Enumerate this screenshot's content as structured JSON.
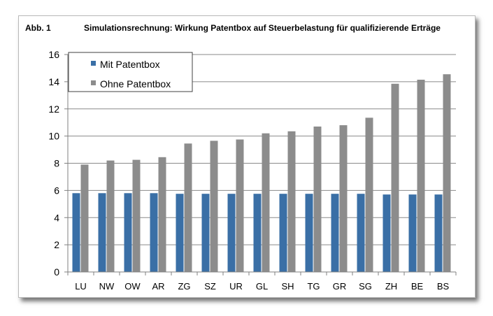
{
  "figure": {
    "label": "Abb. 1",
    "title": "Simulationsrechnung: Wirkung Patentbox auf Steuerbelastung für qualifizierende Erträge"
  },
  "chart_data": {
    "type": "bar",
    "title": "Simulationsrechnung: Wirkung Patentbox auf Steuerbelastung für qualifizierende Erträge",
    "xlabel": "",
    "ylabel": "",
    "ylim": [
      0,
      16
    ],
    "yticks": [
      "0",
      "2",
      "4",
      "6",
      "8",
      "10",
      "12",
      "14",
      "16"
    ],
    "grid": true,
    "legend_position": "top-left",
    "categories": [
      "LU",
      "NW",
      "OW",
      "AR",
      "ZG",
      "SZ",
      "UR",
      "GL",
      "SH",
      "TG",
      "GR",
      "SG",
      "ZH",
      "BE",
      "BS"
    ],
    "series": [
      {
        "name": "Mit Patentbox",
        "color": "#3a6fa6",
        "values": [
          5.8,
          5.8,
          5.8,
          5.8,
          5.75,
          5.75,
          5.75,
          5.75,
          5.75,
          5.75,
          5.75,
          5.75,
          5.7,
          5.7,
          5.7
        ]
      },
      {
        "name": "Ohne Patentbox",
        "color": "#8c8c8c",
        "values": [
          7.9,
          8.2,
          8.25,
          8.45,
          9.45,
          9.65,
          9.75,
          10.2,
          10.35,
          10.7,
          10.8,
          11.35,
          13.85,
          14.15,
          14.55
        ]
      }
    ]
  }
}
